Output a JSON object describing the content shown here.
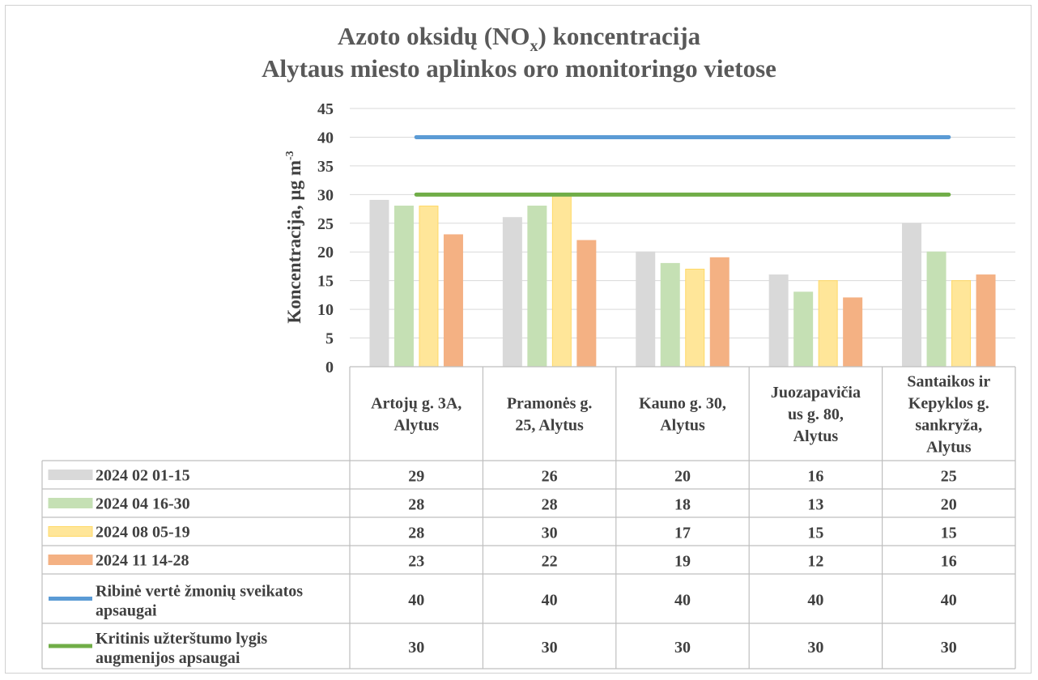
{
  "chart_data": {
    "type": "bar",
    "title": "Azoto oksidų (NO",
    "title_subscript": "x",
    "title_tail": ") koncentracija",
    "subtitle": "Alytaus miesto aplinkos oro monitoringo vietose",
    "ylabel": "Koncentracija, µg m",
    "ylabel_superscript": "-3",
    "ylim": [
      0,
      45
    ],
    "yticks": [
      0,
      5,
      10,
      15,
      20,
      25,
      30,
      35,
      40,
      45
    ],
    "grid": true,
    "legend_placement": "data table",
    "categories": [
      [
        "Artojų g. 3A,",
        "Alytus"
      ],
      [
        "Pramonės g.",
        "25, Alytus"
      ],
      [
        "Kauno g. 30,",
        "Alytus"
      ],
      [
        "Juozapavičia",
        "us g. 80,",
        "Alytus"
      ],
      [
        "Santaikos ir",
        "Kepyklos g.",
        "sankryža,",
        "Alytus"
      ]
    ],
    "series": [
      {
        "name": "2024 02 01-15",
        "values": [
          29,
          26,
          20,
          16,
          25
        ],
        "color": "#d9d9d9",
        "border": "#d9d9d9",
        "kind": "bar",
        "label_lines": [
          "2024 02 01-15"
        ]
      },
      {
        "name": "2024 04 16-30",
        "values": [
          28,
          28,
          18,
          13,
          20
        ],
        "color": "#c5e0b4",
        "border": "#c5e0b4",
        "kind": "bar",
        "label_lines": [
          "2024 04 16-30"
        ]
      },
      {
        "name": "2024 08 05-19",
        "values": [
          28,
          30,
          17,
          15,
          15
        ],
        "color": "#ffe699",
        "border": "#ffd966",
        "kind": "bar",
        "label_lines": [
          "2024 08 05-19"
        ]
      },
      {
        "name": "2024 11 14-28",
        "values": [
          23,
          22,
          19,
          12,
          16
        ],
        "color": "#f4b183",
        "border": "#f4b183",
        "kind": "bar",
        "label_lines": [
          "2024 11 14-28"
        ]
      },
      {
        "name": "Ribinė vertė žmonių sveikatos apsaugai",
        "values": [
          40,
          40,
          40,
          40,
          40
        ],
        "color": "#5b9bd5",
        "kind": "line",
        "label_lines": [
          "Ribinė vertė žmonių sveikatos",
          "apsaugai"
        ]
      },
      {
        "name": "Kritinis užterštumo lygis augmenijos apsaugai",
        "values": [
          30,
          30,
          30,
          30,
          30
        ],
        "color": "#70ad47",
        "kind": "line",
        "label_lines": [
          "Kritinis užterštumo lygis",
          "augmenijos apsaugai"
        ]
      }
    ]
  }
}
